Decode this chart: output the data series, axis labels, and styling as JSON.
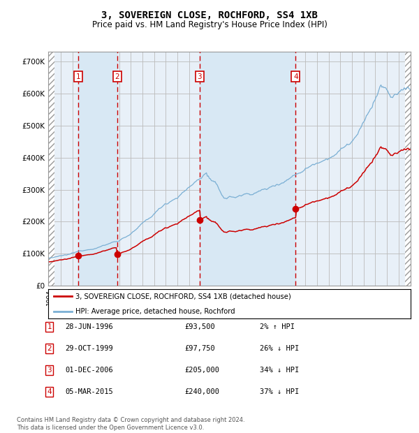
{
  "title": "3, SOVEREIGN CLOSE, ROCHFORD, SS4 1XB",
  "subtitle": "Price paid vs. HM Land Registry's House Price Index (HPI)",
  "legend_label_red": "3, SOVEREIGN CLOSE, ROCHFORD, SS4 1XB (detached house)",
  "legend_label_blue": "HPI: Average price, detached house, Rochford",
  "sale_years": [
    1996.5,
    1999.833,
    2006.917,
    2015.167
  ],
  "sale_prices": [
    93500,
    97750,
    205000,
    240000
  ],
  "sale_labels": [
    "1",
    "2",
    "3",
    "4"
  ],
  "sale_info": [
    {
      "label": "1",
      "date": "28-JUN-1996",
      "price": "£93,500",
      "pct": "2%",
      "dir": "↑"
    },
    {
      "label": "2",
      "date": "29-OCT-1999",
      "price": "£97,750",
      "pct": "26%",
      "dir": "↓"
    },
    {
      "label": "3",
      "date": "01-DEC-2006",
      "price": "£205,000",
      "pct": "34%",
      "dir": "↓"
    },
    {
      "label": "4",
      "date": "05-MAR-2015",
      "price": "£240,000",
      "pct": "37%",
      "dir": "↓"
    }
  ],
  "ylim": [
    0,
    730000
  ],
  "yticks": [
    0,
    100000,
    200000,
    300000,
    400000,
    500000,
    600000,
    700000
  ],
  "ytick_labels": [
    "£0",
    "£100K",
    "£200K",
    "£300K",
    "£400K",
    "£500K",
    "£600K",
    "£700K"
  ],
  "bg_color": "#ffffff",
  "plot_bg": "#e8f0f8",
  "grid_color": "#bbbbbb",
  "red_color": "#cc0000",
  "blue_color": "#7aafd4",
  "shade_color": "#d8e8f4",
  "x_start_year": 1994,
  "x_end_year": 2025,
  "footer_text": "Contains HM Land Registry data © Crown copyright and database right 2024.\nThis data is licensed under the Open Government Licence v3.0."
}
